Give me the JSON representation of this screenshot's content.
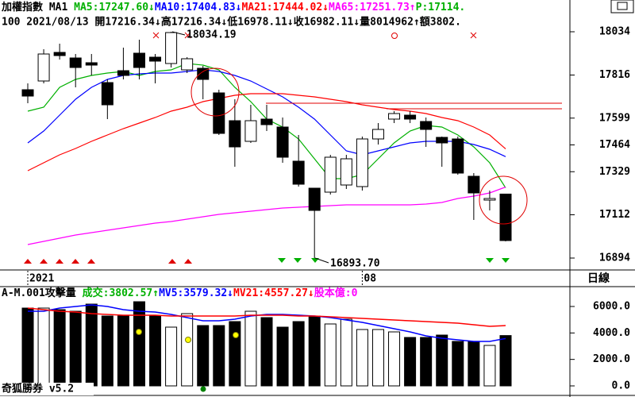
{
  "period": "日線",
  "footer": "奇狐勝券 v5.2",
  "chart_data": [
    {
      "type": "candlestick",
      "title": "加權指數 MA1",
      "price_label": "P:17114.",
      "price_label_color": "#00b000",
      "subtitle": "100 2021/08/13 開17216.34↓高17216.34↓低16978.11↓收16982.11↓量8014962↑額3802.",
      "categories": [
        "2021",
        null,
        null,
        null,
        null,
        null,
        null,
        null,
        null,
        null,
        null,
        null,
        null,
        null,
        null,
        null,
        null,
        null,
        null,
        null,
        null,
        "08",
        null,
        null,
        null,
        null,
        null,
        null,
        null,
        null,
        null
      ],
      "open": [
        17742,
        17786,
        17930,
        17902,
        17878,
        17778,
        17838,
        17926,
        17906,
        17874,
        17842,
        17850,
        17726,
        17586,
        17482,
        17594,
        17554,
        17382,
        17246,
        17226,
        17262,
        17254,
        17494,
        17594,
        17614,
        17582,
        17502,
        17494,
        17306,
        17186,
        17216.34
      ],
      "high": [
        17774,
        17946,
        17974,
        17922,
        17922,
        17794,
        17954,
        17994,
        17922,
        18034.19,
        17906,
        17862,
        17742,
        17694,
        17666,
        17666,
        17602,
        17514,
        17246,
        17414,
        17414,
        17506,
        17574,
        17634,
        17634,
        17602,
        17506,
        17506,
        17322,
        17234,
        17216.34
      ],
      "low": [
        17674,
        17774,
        17894,
        17754,
        17814,
        17594,
        17794,
        17794,
        17774,
        17854,
        17826,
        17694,
        17514,
        17354,
        17474,
        17534,
        17374,
        17254,
        16893.7,
        17214,
        17242,
        17234,
        17466,
        17574,
        17574,
        17454,
        17354,
        17314,
        17086,
        17134,
        16978.11
      ],
      "close": [
        17710,
        17922,
        17914,
        17854,
        17866,
        17666,
        17814,
        17854,
        17886,
        18030,
        17898,
        17794,
        17522,
        17454,
        17586,
        17566,
        17402,
        17266,
        17134,
        17402,
        17394,
        17494,
        17542,
        17622,
        17594,
        17542,
        17474,
        17322,
        17222,
        17194,
        16982.11
      ],
      "series": [
        {
          "name": "MA5:17247.60↓",
          "color": "#00b000",
          "values": [
            17634,
            17654,
            17754,
            17794,
            17814,
            17826,
            17834,
            17814,
            17834,
            17842,
            17874,
            17866,
            17842,
            17754,
            17682,
            17594,
            17554,
            17494,
            17394,
            17294,
            17294,
            17314,
            17394,
            17474,
            17534,
            17562,
            17554,
            17514,
            17454,
            17374,
            17247.6
          ]
        },
        {
          "name": "MA10:17404.83↓",
          "color": "#0000ff",
          "values": [
            17474,
            17534,
            17614,
            17694,
            17754,
            17794,
            17814,
            17822,
            17826,
            17826,
            17834,
            17842,
            17834,
            17814,
            17786,
            17746,
            17706,
            17654,
            17594,
            17514,
            17434,
            17414,
            17434,
            17454,
            17474,
            17482,
            17482,
            17482,
            17466,
            17442,
            17404.83
          ]
        },
        {
          "name": "MA21:17444.02↓",
          "color": "#ff0000",
          "values": [
            17334,
            17374,
            17414,
            17446,
            17482,
            17514,
            17546,
            17574,
            17602,
            17634,
            17654,
            17682,
            17698,
            17714,
            17722,
            17722,
            17722,
            17714,
            17706,
            17694,
            17682,
            17666,
            17654,
            17642,
            17634,
            17622,
            17602,
            17586,
            17554,
            17514,
            17444.02
          ]
        },
        {
          "name": "MA65:17251.73↑",
          "color": "#ff00ff",
          "values": [
            16962,
            16978,
            16994,
            17010,
            17022,
            17034,
            17046,
            17058,
            17070,
            17078,
            17090,
            17102,
            17114,
            17122,
            17130,
            17138,
            17146,
            17150,
            17154,
            17158,
            17162,
            17162,
            17162,
            17162,
            17162,
            17166,
            17174,
            17194,
            17206,
            17222,
            17251.73
          ]
        }
      ],
      "annotations": [
        "18034.19",
        "16893.70"
      ],
      "ylim": [
        16834,
        18194
      ],
      "yticks": [
        18034,
        17816,
        17599,
        17464,
        17329,
        17112,
        16894
      ]
    },
    {
      "type": "bar",
      "title": "A-M.001攻擊量",
      "volume_label": "成交:3802.57↑",
      "volume_label_color": "#00b000",
      "capital_label": "股本億:0",
      "capital_label_color": "#ff00ff",
      "values": [
        5880,
        5880,
        5760,
        5640,
        6180,
        5280,
        5280,
        6360,
        5280,
        4440,
        5460,
        4560,
        4560,
        4860,
        5640,
        5160,
        4440,
        4860,
        5280,
        4680,
        5040,
        4260,
        4260,
        4080,
        3660,
        3660,
        3840,
        3360,
        3360,
        3060,
        3802.57
      ],
      "series": [
        {
          "name": "MV5:3579.32↓",
          "color": "#0000ff",
          "values": [
            5640,
            5640,
            5880,
            6000,
            6120,
            6000,
            5760,
            5640,
            5580,
            5400,
            5160,
            4920,
            4920,
            5040,
            5280,
            5400,
            5400,
            5340,
            5280,
            5160,
            4980,
            4800,
            4560,
            4320,
            4080,
            3780,
            3600,
            3480,
            3360,
            3360,
            3579.32
          ]
        },
        {
          "name": "MV21:4557.27↓",
          "color": "#ff0000",
          "values": [
            5880,
            5760,
            5640,
            5580,
            5460,
            5400,
            5340,
            5340,
            5340,
            5280,
            5280,
            5280,
            5280,
            5280,
            5340,
            5340,
            5340,
            5280,
            5280,
            5220,
            5160,
            5100,
            5040,
            4980,
            4920,
            4860,
            4800,
            4740,
            4620,
            4500,
            4557.27
          ]
        }
      ],
      "ylim": [
        0,
        7440
      ],
      "yticks": [
        {
          "value": 6000,
          "label": "6000.0"
        },
        {
          "value": 4000,
          "label": "4000.0"
        },
        {
          "value": 2000,
          "label": "2000.0"
        },
        {
          "value": 0,
          "label": "0.0"
        }
      ]
    }
  ]
}
